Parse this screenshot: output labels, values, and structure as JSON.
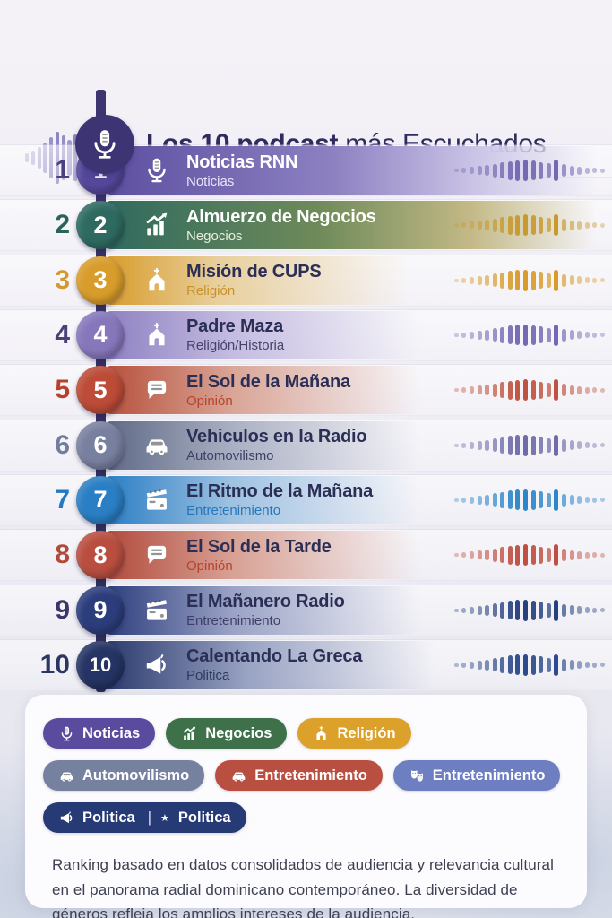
{
  "header": {
    "title_bold": "Los 10 podcast",
    "title_regular": " más Escuchados",
    "accent_color": "#3d3474"
  },
  "rows": [
    {
      "rank": "1",
      "name": "Noticias RNN",
      "category": "Noticias",
      "icon": "microphone-icon",
      "circle_color": "#55489b",
      "number_color": "#4a4180",
      "title_color": "#ffffff",
      "subtitle_color": "#e9e5f7",
      "wave_color": "#7568b2",
      "bar_stops": [
        "#5d4fa0 0%",
        "#8d81c2 45%",
        "#cfc9e8 75%",
        "rgba(255,255,255,0.05) 97%"
      ]
    },
    {
      "rank": "2",
      "name": "Almuerzo de Negocios",
      "category": "Negocios",
      "icon": "chart-icon",
      "circle_color": "#2e6a60",
      "number_color": "#29645a",
      "title_color": "#ffffff",
      "subtitle_color": "#e6eedd",
      "wave_color": "#c79a30",
      "bar_stops": [
        "#2f6a5e 0%",
        "#6f8a5a 42%",
        "#c3b986 72%",
        "rgba(255,255,255,0.05) 97%"
      ]
    },
    {
      "rank": "3",
      "name": "Misión de CUPS",
      "category": "Religión",
      "icon": "church-icon",
      "circle_color": "#d89c2b",
      "number_color": "#d2992f",
      "title_color": "#2c2f55",
      "subtitle_color": "#c8922a",
      "wave_color": "#d89c2b",
      "bar_stops": [
        "#d89c2b 0%",
        "#e8cf9c 22%",
        "rgba(255,255,255,0.05) 60%"
      ]
    },
    {
      "rank": "4",
      "name": "Padre Maza",
      "category": "Religión/Historia",
      "icon": "church-icon",
      "circle_color": "#8677bb",
      "number_color": "#4a4176",
      "title_color": "#2c2f55",
      "subtitle_color": "#45436b",
      "wave_color": "#7568b2",
      "bar_stops": [
        "#8e80c2 0%",
        "#c4bce1 25%",
        "rgba(255,255,255,0.05) 62%"
      ]
    },
    {
      "rank": "5",
      "name": "El Sol de la Mañana",
      "category": "Opinión",
      "icon": "speech-icon",
      "circle_color": "#bc4b37",
      "number_color": "#b5432c",
      "title_color": "#2c2f55",
      "subtitle_color": "#b5432c",
      "wave_color": "#c05340",
      "bar_stops": [
        "#b7503c 0%",
        "#d9a596 25%",
        "rgba(255,255,255,0.05) 62%"
      ]
    },
    {
      "rank": "6",
      "name": "Vehiculos en la Radio",
      "category": "Automovilismo",
      "icon": "car-icon",
      "circle_color": "#78809f",
      "number_color": "#737d9e",
      "title_color": "#2c2f55",
      "subtitle_color": "#3c4266",
      "wave_color": "#6f6ca9",
      "bar_stops": [
        "#5f6986 0%",
        "#aab0c3 25%",
        "rgba(255,255,255,0.05) 62%"
      ]
    },
    {
      "rank": "7",
      "name": "El Ritmo de la Mañana",
      "category": "Entretenimiento",
      "icon": "clapper-icon",
      "circle_color": "#2a7ec4",
      "number_color": "#2579c0",
      "title_color": "#2c2f55",
      "subtitle_color": "#2776ba",
      "wave_color": "#2e86c8",
      "bar_stops": [
        "#2a7ec4 0%",
        "#9fc2e2 25%",
        "rgba(255,255,255,0.05) 62%"
      ]
    },
    {
      "rank": "8",
      "name": "El Sol de la Tarde",
      "category": "Opinión",
      "icon": "speech-icon",
      "circle_color": "#b94e40",
      "number_color": "#b24a3b",
      "title_color": "#2c2f55",
      "subtitle_color": "#b5432c",
      "wave_color": "#bf4f42",
      "bar_stops": [
        "#b24a3c 0%",
        "#d8a194 25%",
        "rgba(255,255,255,0.05) 62%"
      ]
    },
    {
      "rank": "9",
      "name": "El Mañanero Radio",
      "category": "Entretenimiento",
      "icon": "clapper-icon",
      "circle_color": "#2c3d7c",
      "number_color": "#3b3766",
      "title_color": "#2c2f55",
      "subtitle_color": "#413f68",
      "wave_color": "#27417f",
      "bar_stops": [
        "#2c3d7c 0%",
        "#9aa3c6 25%",
        "rgba(255,255,255,0.05) 62%"
      ]
    },
    {
      "rank": "10",
      "name": "Calentando La Greca",
      "category": "Politica",
      "icon": "megaphone-icon",
      "circle_color": "#253465",
      "number_color": "#2b3760",
      "title_color": "#2c2f55",
      "subtitle_color": "#2e3a5e",
      "wave_color": "#2d4a8c",
      "bar_stops": [
        "#2b3a6e 0%",
        "#99a3c3 28%",
        "rgba(255,255,255,0.05) 65%"
      ]
    }
  ],
  "wave_pattern": [
    4,
    6,
    8,
    10,
    12,
    15,
    18,
    21,
    23,
    24,
    22,
    19,
    16,
    24,
    14,
    11,
    9,
    7,
    6,
    5
  ],
  "logo_wave_pattern": [
    10,
    16,
    24,
    34,
    46,
    58,
    50,
    40,
    52,
    38,
    26,
    14
  ],
  "legend": {
    "pills": [
      {
        "label": "Noticias",
        "icon": "microphone-icon",
        "color": "#5b4b9e"
      },
      {
        "label": "Negocios",
        "icon": "chart-icon",
        "color": "#3e7149"
      },
      {
        "label": "Religión",
        "icon": "church-icon",
        "color": "#dba12a"
      },
      {
        "label": "Automovilismo",
        "icon": "car-icon",
        "color": "#76809f"
      },
      {
        "label": "Entretenimiento",
        "icon": "car-icon",
        "color": "#b84f41"
      },
      {
        "label": "Entretenimiento",
        "icon": "masks-icon",
        "color": "#6d7fc0"
      },
      {
        "label": "Politica",
        "icon": "megaphone-icon",
        "color": "#263a76",
        "divider": "|",
        "star": "★",
        "secondary_label": "Politica"
      }
    ]
  },
  "footer": {
    "text": "Ranking basado en datos consolidados de audiencia y relevancia cultural en el panorama radial dominicano contemporáneo. La diversidad de géneros refleja los amplios intereses de la audiencia."
  }
}
